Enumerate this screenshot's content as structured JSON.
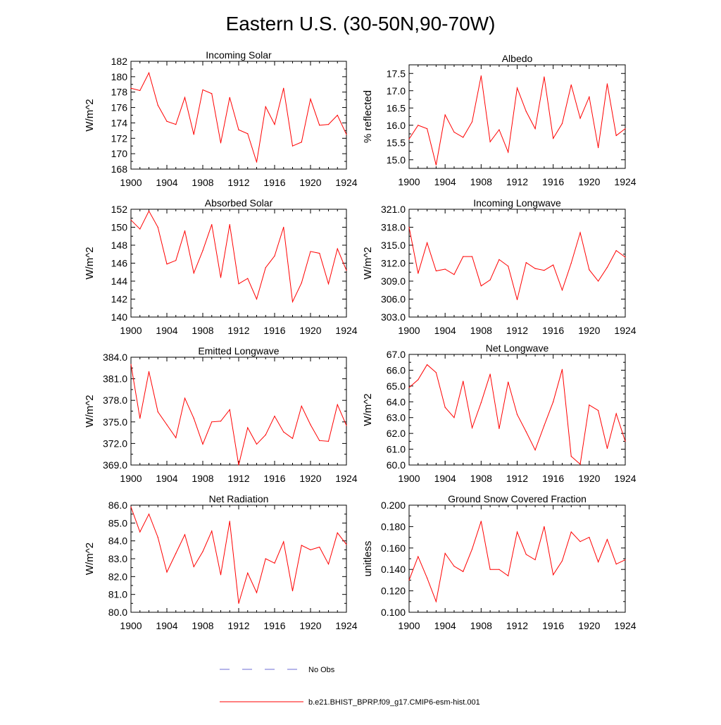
{
  "figure": {
    "title": "Eastern U.S. (30-50N,90-70W)"
  },
  "legend": {
    "entries": [
      {
        "label": "No Obs",
        "color": "#6b6bd6",
        "style": "dashed"
      },
      {
        "label": "b.e21.BHIST_BPRP.f09_g17.CMIP6-esm-hist.001",
        "color": "#ff0000",
        "style": "solid"
      }
    ]
  },
  "chart_data": [
    {
      "type": "line",
      "title": "Incoming Solar",
      "xlabel": "",
      "ylabel": "W/m^2",
      "xlim": [
        1900,
        1924
      ],
      "ylim": [
        168,
        182
      ],
      "xticks": [
        "1900",
        "1904",
        "1908",
        "1912",
        "1916",
        "1920",
        "1924"
      ],
      "yticks": [
        "168",
        "170",
        "172",
        "174",
        "176",
        "178",
        "180",
        "182"
      ],
      "x": [
        1900,
        1901,
        1902,
        1903,
        1904,
        1905,
        1906,
        1907,
        1908,
        1909,
        1910,
        1911,
        1912,
        1913,
        1914,
        1915,
        1916,
        1917,
        1918,
        1919,
        1920,
        1921,
        1922,
        1923,
        1924
      ],
      "series": [
        {
          "name": "b.e21.BHIST_BPRP.f09_g17.CMIP6-esm-hist.001",
          "color": "#ff0000",
          "values": [
            178.5,
            178.2,
            180.5,
            176.3,
            174.2,
            173.8,
            177.3,
            172.5,
            178.3,
            177.8,
            171.4,
            177.3,
            173.1,
            172.6,
            168.9,
            176.1,
            173.8,
            178.5,
            171.0,
            171.5,
            177.1,
            173.7,
            173.8,
            175.0,
            172.5
          ]
        }
      ]
    },
    {
      "type": "line",
      "title": "Albedo",
      "xlabel": "",
      "ylabel": "% reflected",
      "xlim": [
        1900,
        1924
      ],
      "ylim": [
        14.75,
        17.75
      ],
      "xticks": [
        "1900",
        "1904",
        "1908",
        "1912",
        "1916",
        "1920",
        "1924"
      ],
      "yticks": [
        "15.0",
        "15.5",
        "16.0",
        "16.5",
        "17.0",
        "17.5"
      ],
      "x": [
        1900,
        1901,
        1902,
        1903,
        1904,
        1905,
        1906,
        1907,
        1908,
        1909,
        1910,
        1911,
        1912,
        1913,
        1914,
        1915,
        1916,
        1917,
        1918,
        1919,
        1920,
        1921,
        1922,
        1923,
        1924
      ],
      "series": [
        {
          "name": "b.e21.BHIST_BPRP.f09_g17.CMIP6-esm-hist.001",
          "color": "#ff0000",
          "values": [
            15.6,
            16.0,
            15.9,
            14.85,
            16.3,
            15.8,
            15.65,
            16.1,
            17.43,
            15.52,
            15.87,
            15.22,
            17.08,
            16.4,
            15.9,
            17.4,
            15.62,
            16.05,
            17.17,
            16.2,
            16.82,
            15.35,
            17.2,
            15.7,
            15.9
          ]
        }
      ]
    },
    {
      "type": "line",
      "title": "Absorbed Solar",
      "xlabel": "",
      "ylabel": "W/m^2",
      "xlim": [
        1900,
        1924
      ],
      "ylim": [
        140,
        152
      ],
      "xticks": [
        "1900",
        "1904",
        "1908",
        "1912",
        "1916",
        "1920",
        "1924"
      ],
      "yticks": [
        "140",
        "142",
        "144",
        "146",
        "148",
        "150",
        "152"
      ],
      "x": [
        1900,
        1901,
        1902,
        1903,
        1904,
        1905,
        1906,
        1907,
        1908,
        1909,
        1910,
        1911,
        1912,
        1913,
        1914,
        1915,
        1916,
        1917,
        1918,
        1919,
        1920,
        1921,
        1922,
        1923,
        1924
      ],
      "series": [
        {
          "name": "b.e21.BHIST_BPRP.f09_g17.CMIP6-esm-hist.001",
          "color": "#ff0000",
          "values": [
            150.8,
            149.8,
            151.8,
            150.0,
            145.9,
            146.3,
            149.6,
            144.9,
            147.4,
            150.3,
            144.4,
            150.3,
            143.7,
            144.3,
            142.0,
            145.5,
            146.8,
            150.0,
            141.7,
            143.8,
            147.3,
            147.1,
            143.7,
            147.6,
            145.2
          ]
        }
      ]
    },
    {
      "type": "line",
      "title": "Incoming Longwave",
      "xlabel": "",
      "ylabel": "W/m^2",
      "xlim": [
        1900,
        1924
      ],
      "ylim": [
        303.0,
        321.0
      ],
      "xticks": [
        "1900",
        "1904",
        "1908",
        "1912",
        "1916",
        "1920",
        "1924"
      ],
      "yticks": [
        "303.0",
        "306.0",
        "309.0",
        "312.0",
        "315.0",
        "318.0",
        "321.0"
      ],
      "x": [
        1900,
        1901,
        1902,
        1903,
        1904,
        1905,
        1906,
        1907,
        1908,
        1909,
        1910,
        1911,
        1912,
        1913,
        1914,
        1915,
        1916,
        1917,
        1918,
        1919,
        1920,
        1921,
        1922,
        1923,
        1924
      ],
      "series": [
        {
          "name": "b.e21.BHIST_BPRP.f09_g17.CMIP6-esm-hist.001",
          "color": "#ff0000",
          "values": [
            318.0,
            310.3,
            315.4,
            310.7,
            311.0,
            310.1,
            313.1,
            313.1,
            308.2,
            309.2,
            312.6,
            311.5,
            305.9,
            312.1,
            311.1,
            310.8,
            311.7,
            307.5,
            312.0,
            317.1,
            310.9,
            309.0,
            311.3,
            314.1,
            313.0
          ]
        }
      ]
    },
    {
      "type": "line",
      "title": "Emitted Longwave",
      "xlabel": "",
      "ylabel": "W/m^2",
      "xlim": [
        1900,
        1924
      ],
      "ylim": [
        369.0,
        384.0
      ],
      "xticks": [
        "1900",
        "1904",
        "1908",
        "1912",
        "1916",
        "1920",
        "1924"
      ],
      "yticks": [
        "369.0",
        "372.0",
        "375.0",
        "378.0",
        "381.0",
        "384.0"
      ],
      "x": [
        1900,
        1901,
        1902,
        1903,
        1904,
        1905,
        1906,
        1907,
        1908,
        1909,
        1910,
        1911,
        1912,
        1913,
        1914,
        1915,
        1916,
        1917,
        1918,
        1919,
        1920,
        1921,
        1922,
        1923,
        1924
      ],
      "series": [
        {
          "name": "b.e21.BHIST_BPRP.f09_g17.CMIP6-esm-hist.001",
          "color": "#ff0000",
          "values": [
            383.0,
            375.5,
            382.0,
            376.4,
            374.6,
            372.8,
            378.3,
            375.5,
            371.9,
            375.0,
            375.1,
            376.7,
            369.0,
            374.2,
            371.9,
            373.2,
            375.8,
            373.6,
            372.7,
            377.2,
            374.6,
            372.4,
            372.3,
            377.4,
            374.5
          ]
        }
      ]
    },
    {
      "type": "line",
      "title": "Net Longwave",
      "xlabel": "",
      "ylabel": "W/m^2",
      "xlim": [
        1900,
        1924
      ],
      "ylim": [
        60.0,
        67.0
      ],
      "xticks": [
        "1900",
        "1904",
        "1908",
        "1912",
        "1916",
        "1920",
        "1924"
      ],
      "yticks": [
        "60.0",
        "61.0",
        "62.0",
        "63.0",
        "64.0",
        "65.0",
        "66.0",
        "67.0"
      ],
      "x": [
        1900,
        1901,
        1902,
        1903,
        1904,
        1905,
        1906,
        1907,
        1908,
        1909,
        1910,
        1911,
        1912,
        1913,
        1914,
        1915,
        1916,
        1917,
        1918,
        1919,
        1920,
        1921,
        1922,
        1923,
        1924
      ],
      "series": [
        {
          "name": "b.e21.BHIST_BPRP.f09_g17.CMIP6-esm-hist.001",
          "color": "#ff0000",
          "values": [
            64.9,
            65.4,
            66.35,
            65.85,
            63.65,
            63.0,
            65.3,
            62.35,
            63.95,
            65.75,
            62.3,
            65.25,
            63.2,
            62.1,
            60.95,
            62.5,
            64.0,
            66.05,
            60.55,
            60.05,
            63.8,
            63.45,
            61.05,
            63.25,
            61.5
          ]
        }
      ]
    },
    {
      "type": "line",
      "title": "Net Radiation",
      "xlabel": "",
      "ylabel": "W/m^2",
      "xlim": [
        1900,
        1924
      ],
      "ylim": [
        80.0,
        86.0
      ],
      "xticks": [
        "1900",
        "1904",
        "1908",
        "1912",
        "1916",
        "1920",
        "1924"
      ],
      "yticks": [
        "80.0",
        "81.0",
        "82.0",
        "83.0",
        "84.0",
        "85.0",
        "86.0"
      ],
      "x": [
        1900,
        1901,
        1902,
        1903,
        1904,
        1905,
        1906,
        1907,
        1908,
        1909,
        1910,
        1911,
        1912,
        1913,
        1914,
        1915,
        1916,
        1917,
        1918,
        1919,
        1920,
        1921,
        1922,
        1923,
        1924
      ],
      "series": [
        {
          "name": "b.e21.BHIST_BPRP.f09_g17.CMIP6-esm-hist.001",
          "color": "#ff0000",
          "values": [
            85.9,
            84.5,
            85.5,
            84.2,
            82.25,
            83.3,
            84.35,
            82.55,
            83.4,
            84.55,
            82.1,
            85.1,
            80.5,
            82.2,
            81.1,
            83.0,
            82.75,
            83.95,
            81.2,
            83.75,
            83.5,
            83.65,
            82.7,
            84.45,
            83.8
          ]
        }
      ]
    },
    {
      "type": "line",
      "title": "Ground Snow Covered Fraction",
      "xlabel": "",
      "ylabel": "unitless",
      "xlim": [
        1900,
        1924
      ],
      "ylim": [
        0.1,
        0.2
      ],
      "xticks": [
        "1900",
        "1904",
        "1908",
        "1912",
        "1916",
        "1920",
        "1924"
      ],
      "yticks": [
        "0.100",
        "0.120",
        "0.140",
        "0.160",
        "0.180",
        "0.200"
      ],
      "x": [
        1900,
        1901,
        1902,
        1903,
        1904,
        1905,
        1906,
        1907,
        1908,
        1909,
        1910,
        1911,
        1912,
        1913,
        1914,
        1915,
        1916,
        1917,
        1918,
        1919,
        1920,
        1921,
        1922,
        1923,
        1924
      ],
      "series": [
        {
          "name": "b.e21.BHIST_BPRP.f09_g17.CMIP6-esm-hist.001",
          "color": "#ff0000",
          "values": [
            0.13,
            0.152,
            0.132,
            0.11,
            0.155,
            0.143,
            0.138,
            0.159,
            0.185,
            0.14,
            0.14,
            0.134,
            0.175,
            0.154,
            0.149,
            0.18,
            0.135,
            0.148,
            0.175,
            0.166,
            0.17,
            0.147,
            0.168,
            0.145,
            0.149
          ]
        }
      ]
    }
  ]
}
